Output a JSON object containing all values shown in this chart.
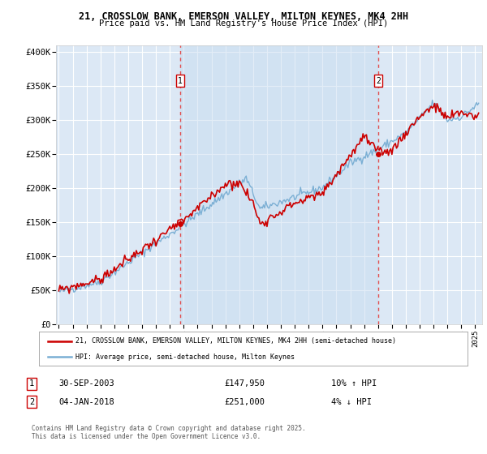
{
  "title1": "21, CROSSLOW BANK, EMERSON VALLEY, MILTON KEYNES, MK4 2HH",
  "title2": "Price paid vs. HM Land Registry's House Price Index (HPI)",
  "ylabel_ticks": [
    "£0",
    "£50K",
    "£100K",
    "£150K",
    "£200K",
    "£250K",
    "£300K",
    "£350K",
    "£400K"
  ],
  "ytick_values": [
    0,
    50000,
    100000,
    150000,
    200000,
    250000,
    300000,
    350000,
    400000
  ],
  "ylim": [
    0,
    410000
  ],
  "xlim_start": 1994.8,
  "xlim_end": 2025.5,
  "background_color": "#dce8f5",
  "grid_color": "#ffffff",
  "line1_color": "#cc0000",
  "line2_color": "#7bafd4",
  "marker1_color": "#cc0000",
  "transaction1_x": 2003.75,
  "transaction1_y": 147950,
  "transaction2_x": 2018.02,
  "transaction2_y": 251000,
  "vline_color": "#e05050",
  "legend_line1": "21, CROSSLOW BANK, EMERSON VALLEY, MILTON KEYNES, MK4 2HH (semi-detached house)",
  "legend_line2": "HPI: Average price, semi-detached house, Milton Keynes",
  "annotation1_date": "30-SEP-2003",
  "annotation1_price": "£147,950",
  "annotation1_hpi": "10% ↑ HPI",
  "annotation2_date": "04-JAN-2018",
  "annotation2_price": "£251,000",
  "annotation2_hpi": "4% ↓ HPI",
  "footer": "Contains HM Land Registry data © Crown copyright and database right 2025.\nThis data is licensed under the Open Government Licence v3.0.",
  "xtick_years": [
    1995,
    1996,
    1997,
    1998,
    1999,
    2000,
    2001,
    2002,
    2003,
    2004,
    2005,
    2006,
    2007,
    2008,
    2009,
    2010,
    2011,
    2012,
    2013,
    2014,
    2015,
    2016,
    2017,
    2018,
    2019,
    2020,
    2021,
    2022,
    2023,
    2024,
    2025
  ]
}
